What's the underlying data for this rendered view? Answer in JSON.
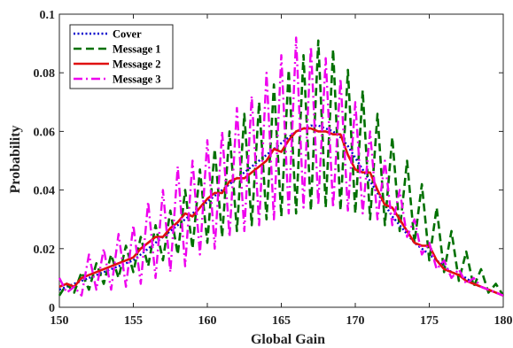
{
  "chart_data": {
    "type": "line",
    "xlabel": "Global Gain",
    "ylabel": "Probability",
    "xlim": [
      150,
      180
    ],
    "ylim": [
      0,
      0.1
    ],
    "xticks": [
      "150",
      "155",
      "160",
      "165",
      "170",
      "175",
      "180"
    ],
    "yticks": [
      "0",
      "0.02",
      "0.04",
      "0.06",
      "0.08",
      "0.1"
    ],
    "grid": false,
    "legend_position": "top-left",
    "x": [
      150,
      150.5,
      151,
      151.5,
      152,
      152.5,
      153,
      153.5,
      154,
      154.5,
      155,
      155.5,
      156,
      156.5,
      157,
      157.5,
      158,
      158.5,
      159,
      159.5,
      160,
      160.5,
      161,
      161.5,
      162,
      162.5,
      163,
      163.5,
      164,
      164.5,
      165,
      165.5,
      166,
      166.5,
      167,
      167.5,
      168,
      168.5,
      169,
      169.5,
      170,
      170.5,
      171,
      171.5,
      172,
      172.5,
      173,
      173.5,
      174,
      174.5,
      175,
      175.5,
      176,
      176.5,
      177,
      177.5,
      178,
      178.5,
      179,
      179.5,
      180
    ],
    "series": [
      {
        "name": "Cover",
        "color": "#0000cc",
        "style": "dotted",
        "values": [
          0.006,
          0.007,
          0.008,
          0.009,
          0.01,
          0.011,
          0.012,
          0.013,
          0.014,
          0.015,
          0.016,
          0.018,
          0.02,
          0.022,
          0.024,
          0.026,
          0.028,
          0.03,
          0.032,
          0.034,
          0.036,
          0.038,
          0.04,
          0.042,
          0.044,
          0.046,
          0.048,
          0.05,
          0.052,
          0.054,
          0.056,
          0.058,
          0.06,
          0.061,
          0.062,
          0.062,
          0.061,
          0.06,
          0.058,
          0.055,
          0.051,
          0.047,
          0.043,
          0.039,
          0.035,
          0.031,
          0.028,
          0.025,
          0.022,
          0.02,
          0.018,
          0.016,
          0.014,
          0.012,
          0.011,
          0.01,
          0.008,
          0.007,
          0.006,
          0.005,
          0.004
        ]
      },
      {
        "name": "Message 1",
        "color": "#007000",
        "style": "dashed",
        "values": [
          0.004,
          0.008,
          0.005,
          0.012,
          0.006,
          0.015,
          0.008,
          0.018,
          0.01,
          0.021,
          0.012,
          0.024,
          0.014,
          0.028,
          0.016,
          0.033,
          0.018,
          0.04,
          0.02,
          0.047,
          0.022,
          0.054,
          0.024,
          0.06,
          0.026,
          0.066,
          0.028,
          0.07,
          0.03,
          0.076,
          0.031,
          0.081,
          0.032,
          0.086,
          0.033,
          0.091,
          0.034,
          0.088,
          0.033,
          0.081,
          0.032,
          0.074,
          0.03,
          0.066,
          0.028,
          0.058,
          0.026,
          0.05,
          0.022,
          0.042,
          0.016,
          0.034,
          0.012,
          0.026,
          0.009,
          0.019,
          0.007,
          0.013,
          0.005,
          0.008,
          0.004
        ]
      },
      {
        "name": "Message 2",
        "color": "#e01010",
        "style": "solid",
        "values": [
          0.007,
          0.008,
          0.007,
          0.01,
          0.011,
          0.012,
          0.013,
          0.014,
          0.015,
          0.016,
          0.017,
          0.02,
          0.022,
          0.024,
          0.024,
          0.027,
          0.029,
          0.032,
          0.031,
          0.034,
          0.037,
          0.039,
          0.039,
          0.043,
          0.044,
          0.044,
          0.046,
          0.048,
          0.05,
          0.054,
          0.053,
          0.057,
          0.06,
          0.061,
          0.061,
          0.06,
          0.06,
          0.059,
          0.059,
          0.052,
          0.047,
          0.046,
          0.046,
          0.04,
          0.035,
          0.034,
          0.03,
          0.026,
          0.022,
          0.021,
          0.021,
          0.016,
          0.013,
          0.012,
          0.011,
          0.009,
          0.008,
          0.007,
          0.006,
          0.005,
          0.004
        ]
      },
      {
        "name": "Message 3",
        "color": "#ee00ee",
        "style": "dashdot",
        "values": [
          0.01,
          0.005,
          0.007,
          0.004,
          0.018,
          0.006,
          0.02,
          0.006,
          0.025,
          0.007,
          0.028,
          0.008,
          0.036,
          0.01,
          0.04,
          0.012,
          0.048,
          0.014,
          0.05,
          0.018,
          0.057,
          0.02,
          0.06,
          0.024,
          0.068,
          0.026,
          0.072,
          0.028,
          0.08,
          0.03,
          0.086,
          0.032,
          0.092,
          0.034,
          0.089,
          0.035,
          0.085,
          0.034,
          0.078,
          0.033,
          0.07,
          0.032,
          0.06,
          0.03,
          0.05,
          0.028,
          0.04,
          0.024,
          0.03,
          0.018,
          0.022,
          0.013,
          0.016,
          0.01,
          0.013,
          0.008,
          0.01,
          0.007,
          0.006,
          0.005,
          0.004
        ]
      }
    ]
  }
}
